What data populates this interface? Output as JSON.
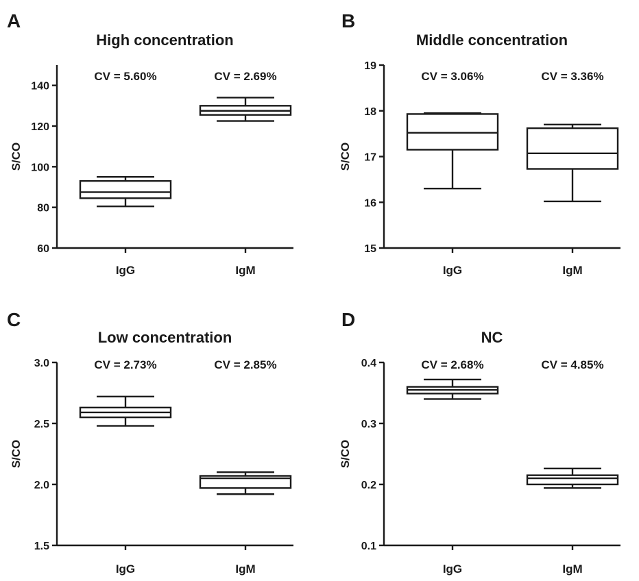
{
  "chart_data": [
    {
      "panel": "A",
      "type": "box",
      "title": "High concentration",
      "ylabel": "S/CO",
      "ylim": [
        60,
        150
      ],
      "yticks": [
        60,
        80,
        100,
        120,
        140
      ],
      "ytick_labels": [
        "60",
        "80",
        "100",
        "120",
        "140"
      ],
      "categories": [
        "IgG",
        "IgM"
      ],
      "boxes": [
        {
          "min": 80.5,
          "q1": 84.5,
          "median": 87.5,
          "q3": 93,
          "max": 95,
          "cv_label": "CV = 5.60%"
        },
        {
          "min": 122.5,
          "q1": 125.5,
          "median": 127.5,
          "q3": 130,
          "max": 134,
          "cv_label": "CV = 2.69%"
        }
      ]
    },
    {
      "panel": "B",
      "type": "box",
      "title": "Middle concentration",
      "ylabel": "S/CO",
      "ylim": [
        15,
        19
      ],
      "yticks": [
        15,
        16,
        17,
        18,
        19
      ],
      "ytick_labels": [
        "15",
        "16",
        "17",
        "18",
        "19"
      ],
      "categories": [
        "IgG",
        "IgM"
      ],
      "boxes": [
        {
          "min": 16.3,
          "q1": 17.15,
          "median": 17.52,
          "q3": 17.93,
          "max": 17.95,
          "cv_label": "CV = 3.06%"
        },
        {
          "min": 16.02,
          "q1": 16.73,
          "median": 17.07,
          "q3": 17.62,
          "max": 17.7,
          "cv_label": "CV = 3.36%"
        }
      ]
    },
    {
      "panel": "C",
      "type": "box",
      "title": "Low concentration",
      "ylabel": "S/CO",
      "ylim": [
        1.5,
        3.0
      ],
      "yticks": [
        1.5,
        2.0,
        2.5,
        3.0
      ],
      "ytick_labels": [
        "1.5",
        "2.0",
        "2.5",
        "3.0"
      ],
      "categories": [
        "IgG",
        "IgM"
      ],
      "boxes": [
        {
          "min": 2.48,
          "q1": 2.55,
          "median": 2.59,
          "q3": 2.63,
          "max": 2.72,
          "cv_label": "CV = 2.73%"
        },
        {
          "min": 1.92,
          "q1": 1.97,
          "median": 2.05,
          "q3": 2.07,
          "max": 2.1,
          "cv_label": "CV = 2.85%"
        }
      ]
    },
    {
      "panel": "D",
      "type": "box",
      "title": "NC",
      "ylabel": "S/CO",
      "ylim": [
        0.1,
        0.4
      ],
      "yticks": [
        0.1,
        0.2,
        0.3,
        0.4
      ],
      "ytick_labels": [
        "0.1",
        "0.2",
        "0.3",
        "0.4"
      ],
      "categories": [
        "IgG",
        "IgM"
      ],
      "boxes": [
        {
          "min": 0.34,
          "q1": 0.349,
          "median": 0.355,
          "q3": 0.36,
          "max": 0.372,
          "cv_label": "CV = 2.68%"
        },
        {
          "min": 0.194,
          "q1": 0.2,
          "median": 0.21,
          "q3": 0.215,
          "max": 0.226,
          "cv_label": "CV = 4.85%"
        }
      ]
    }
  ]
}
